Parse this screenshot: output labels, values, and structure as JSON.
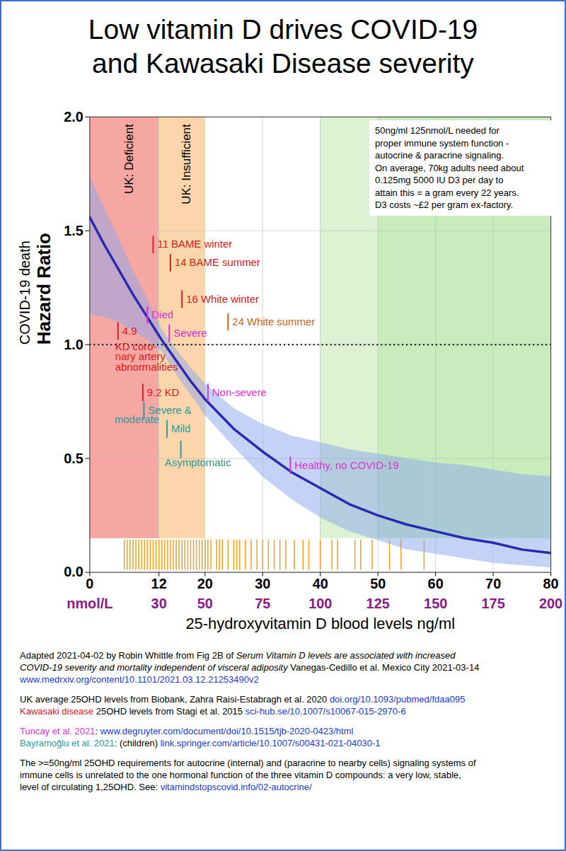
{
  "chart_data": {
    "type": "line",
    "title": "Low vitamin D drives COVID-19\nand Kawasaki Disease severity",
    "x": [
      0,
      2.5,
      5,
      7.5,
      10,
      12.5,
      15,
      17.5,
      20,
      25,
      30,
      35,
      40,
      45,
      50,
      55,
      60,
      65,
      70,
      75,
      80
    ],
    "values": [
      1.56,
      1.44,
      1.33,
      1.22,
      1.12,
      1.02,
      0.93,
      0.84,
      0.76,
      0.63,
      0.53,
      0.44,
      0.37,
      0.3,
      0.25,
      0.21,
      0.18,
      0.15,
      0.13,
      0.1,
      0.085
    ],
    "ci_lower": [
      1.13,
      1.12,
      1.1,
      1.06,
      1.02,
      0.97,
      0.87,
      0.78,
      0.69,
      0.55,
      0.42,
      0.32,
      0.24,
      0.18,
      0.14,
      0.1,
      0.08,
      0.06,
      0.04,
      0.03,
      0.02
    ],
    "ci_upper": [
      1.74,
      1.6,
      1.47,
      1.33,
      1.2,
      1.07,
      0.98,
      0.9,
      0.83,
      0.72,
      0.65,
      0.6,
      0.57,
      0.54,
      0.52,
      0.5,
      0.48,
      0.47,
      0.45,
      0.43,
      0.42
    ],
    "color": "#2a2ab0",
    "band_color": "#8aa6ee",
    "xlim": [
      0,
      80
    ],
    "ylim": [
      0,
      2
    ],
    "xticks": [
      0,
      12,
      20,
      30,
      40,
      50,
      60,
      70,
      80
    ],
    "x2ticks": [
      {
        "value": 0,
        "label": "nmol/L"
      },
      {
        "value": 12,
        "label": "30"
      },
      {
        "value": 20,
        "label": "50"
      },
      {
        "value": 30,
        "label": "75"
      },
      {
        "value": 40,
        "label": "100"
      },
      {
        "value": 50,
        "label": "125"
      },
      {
        "value": 60,
        "label": "150"
      },
      {
        "value": 70,
        "label": "175"
      },
      {
        "value": 80,
        "label": "200"
      }
    ],
    "yticks": [
      {
        "value": 0,
        "label": "0.0"
      },
      {
        "value": 0.5,
        "label": "0.5"
      },
      {
        "value": 1,
        "label": "1.0"
      },
      {
        "value": 1.5,
        "label": "1.5"
      },
      {
        "value": 2,
        "label": "2.0"
      }
    ],
    "xlabel": "25-hydroxyvitamin D blood levels ng/ml",
    "ylabel": [
      "COVID-19 death",
      "Hazard Ratio"
    ],
    "grid": true,
    "reference_line": 1,
    "bands": [
      {
        "x0": 0,
        "x1": 12,
        "label": "UK: Deficient",
        "color": "#f6a7a3"
      },
      {
        "x0": 12,
        "x1": 20,
        "label": "UK: Insufficient",
        "color": "#fbd6ab"
      },
      {
        "x0": 40,
        "x1": 50,
        "color": "#dcf2d2"
      },
      {
        "x0": 50,
        "x1": 80,
        "color": "#c9ecbd"
      }
    ],
    "rug": [
      6,
      6.5,
      7,
      7.5,
      8,
      8.5,
      9,
      9.5,
      10,
      10.5,
      11,
      11.5,
      12,
      12.5,
      13,
      13.5,
      14,
      14.5,
      15,
      15.5,
      16,
      16.5,
      17,
      17.5,
      18,
      18.5,
      19,
      19.5,
      20,
      20.5,
      21,
      22,
      22.5,
      23,
      24,
      25,
      25.5,
      26,
      27,
      28,
      29,
      30,
      31,
      32,
      33,
      34,
      35.5,
      37,
      38,
      40,
      42,
      43,
      46,
      47,
      49,
      52,
      54,
      58
    ],
    "rug_color": "#f0a020",
    "markers": [
      {
        "x": 11,
        "y": 1.44,
        "label": "11 BAME winter",
        "color": "#d42020"
      },
      {
        "x": 14,
        "y": 1.36,
        "label": "14 BAME summer",
        "color": "#d42020"
      },
      {
        "x": 16,
        "y": 1.2,
        "label": "16 White winter",
        "color": "#d42020"
      },
      {
        "x": 24,
        "y": 1.1,
        "label": "24 White summer",
        "color": "#c8641e"
      },
      {
        "x": 10,
        "y": 1.13,
        "label": "Died",
        "color": "#e030d0"
      },
      {
        "x": 13.8,
        "y": 1.05,
        "label": "Severe",
        "color": "#e030d0"
      },
      {
        "x": 4.9,
        "y": 1.06,
        "label": "4.9",
        "color": "#d42020"
      },
      {
        "x": 9.2,
        "y": 0.79,
        "label": "9.2 KD",
        "color": "#d42020"
      },
      {
        "x": 20.5,
        "y": 0.79,
        "label": "Non-severe",
        "color": "#e030d0"
      },
      {
        "x": 9.4,
        "y": 0.71,
        "label": "Severe &",
        "color": "#2a9a9a"
      },
      {
        "x": 13.4,
        "y": 0.63,
        "label": "Mild",
        "color": "#2a9a9a"
      },
      {
        "x": 15.8,
        "y": 0.54,
        "label": "",
        "color": "#2a9a9a"
      },
      {
        "x": 34.8,
        "y": 0.47,
        "label": "Healthy, no COVID-19",
        "color": "#e030d0"
      }
    ],
    "notes": [
      {
        "x": 4.4,
        "y": 1.01,
        "text": "KD coro-\nnary artery\nabnormalities",
        "color": "#d42020"
      },
      {
        "x": 4.3,
        "y": 0.69,
        "text": "moderate",
        "color": "#2a9a9a"
      },
      {
        "x": 13,
        "y": 0.5,
        "text": "Asymptomatic",
        "color": "#2a9a9a"
      }
    ],
    "note_box": "50ng/ml 125nmol/L needed for\nproper immune system function -\nautocrine & paracrine signaling.\nOn average, 70kg adults need about\n0.125mg 5000 IU D3 per day to\nattain this = a gram every 22 years.\nD3 costs ~£2 per gram ex-factory."
  },
  "caption": [
    [
      [
        {
          "text": "Adapted 2021-04-02 by Robin Whittle from Fig 2B of "
        },
        {
          "text": "Serum Vitamin D levels are associated with increased",
          "style": "italic"
        }
      ],
      [
        {
          "text": "COVID-19 severity and  mortality independent of visceral adiposity",
          "style": "italic"
        },
        {
          "text": " Vanegas-Cedillo et al. Mexico City 2021-03-14"
        }
      ],
      [
        {
          "text": "www.medrxiv.org/content/10.1101/2021.03.12.21253490v2",
          "style": "link"
        }
      ]
    ],
    [
      [
        {
          "text": "UK average 25OHD levels from Biobank, Zahra Raisi-Estabragh et al. 2020 "
        },
        {
          "text": "doi.org/10.1093/pubmed/fdaa095",
          "style": "link"
        }
      ],
      [
        {
          "text": "Kawasaki disease",
          "style": "red"
        },
        {
          "text": " 25OHD levels from Stagi et al. 2015 "
        },
        {
          "text": "sci-hub.se/10.1007/s10067-015-2970-6",
          "style": "link"
        }
      ]
    ],
    [
      [
        {
          "text": "Tuncay et al. 2021",
          "style": "magenta"
        },
        {
          "text": ": "
        },
        {
          "text": "www.degruyter.com/document/doi/10.1515/tjb-2020-0423/html",
          "style": "link"
        }
      ],
      [
        {
          "text": "Bayramoğlu et al. 2021",
          "style": "teal"
        },
        {
          "text": ": (children) "
        },
        {
          "text": "link.springer.com/article/10.1007/s00431-021-04030-1",
          "style": "link"
        }
      ]
    ],
    [
      [
        {
          "text": "The >=50ng/ml 25OHD requirements for autocrine (internal) and (paracrine to nearby cells) signaling systems of"
        }
      ],
      [
        {
          "text": "immune cells is unrelated to the one hormonal function of the three vitamin D compounds: a very low, stable,"
        }
      ],
      [
        {
          "text": "level of circulating 1,25OHD.  See:  "
        },
        {
          "text": "vitamindstopscovid.info/02-autocrine/",
          "style": "link"
        }
      ]
    ]
  ]
}
